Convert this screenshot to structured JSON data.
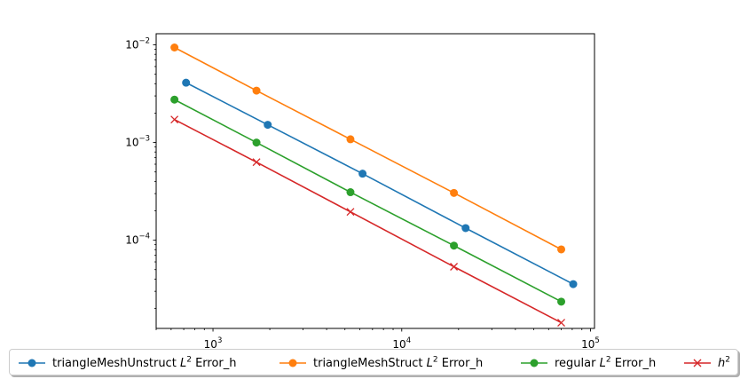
{
  "chart_data": {
    "type": "line",
    "xscale": "log",
    "yscale": "log",
    "xlim": [
      500,
      105000
    ],
    "ylim": [
      1.25e-05,
      0.013
    ],
    "x_ticks": [
      {
        "value": 1000,
        "base": "10",
        "exp": "3"
      },
      {
        "value": 10000,
        "base": "10",
        "exp": "4"
      },
      {
        "value": 100000,
        "base": "10",
        "exp": "5"
      }
    ],
    "y_ticks": [
      {
        "value": 0.0001,
        "base": "10",
        "exp": "−4"
      },
      {
        "value": 0.001,
        "base": "10",
        "exp": "−3"
      },
      {
        "value": 0.01,
        "base": "10",
        "exp": "−2"
      }
    ],
    "grid": false,
    "legend_position": "below",
    "series": [
      {
        "name": "triangleMeshUnstruct",
        "name_sup_prefix": "L",
        "name_sup": "2",
        "name_suffix": "Error_h",
        "color": "#1f77b4",
        "marker": "o",
        "x": [
          720,
          1950,
          6200,
          21800,
          81000
        ],
        "y": [
          0.0041,
          0.00152,
          0.00048,
          0.000133,
          3.55e-05
        ]
      },
      {
        "name": "triangleMeshStruct",
        "name_sup_prefix": "L",
        "name_sup": "2",
        "name_suffix": "Error_h",
        "color": "#ff7f0e",
        "marker": "o",
        "x": [
          625,
          1700,
          5350,
          18900,
          70000
        ],
        "y": [
          0.0094,
          0.0034,
          0.00108,
          0.000305,
          8.05e-05
        ]
      },
      {
        "name": "regular",
        "name_sup_prefix": "L",
        "name_sup": "2",
        "name_suffix": "Error_h",
        "color": "#2ca02c",
        "marker": "o",
        "x": [
          625,
          1700,
          5350,
          18900,
          70000
        ],
        "y": [
          0.00275,
          0.001,
          0.00031,
          8.8e-05,
          2.35e-05
        ]
      },
      {
        "name": "",
        "name_sup_prefix": "h",
        "name_sup": "2",
        "name_suffix": "",
        "color": "#d62728",
        "marker": "x",
        "x": [
          625,
          1700,
          5350,
          18900,
          70000
        ],
        "y": [
          0.00172,
          0.00063,
          0.000195,
          5.35e-05,
          1.43e-05
        ]
      }
    ]
  }
}
